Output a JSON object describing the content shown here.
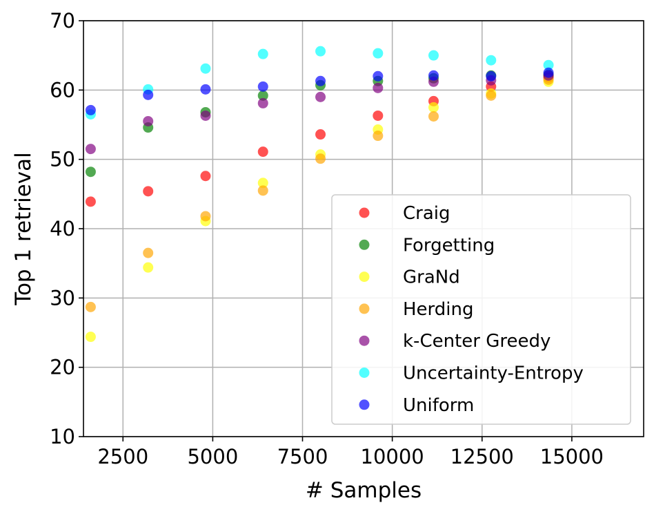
{
  "chart_data": {
    "type": "scatter",
    "xlabel": "# Samples",
    "ylabel": "Top 1 retrieval",
    "xlim": [
      1400,
      17000
    ],
    "ylim": [
      10,
      70
    ],
    "xticks": [
      2500,
      5000,
      7500,
      10000,
      12500,
      15000
    ],
    "yticks": [
      10,
      20,
      30,
      40,
      50,
      60,
      70
    ],
    "grid": true,
    "legend_position": "lower-right",
    "x": [
      1600,
      3200,
      4800,
      6400,
      8000,
      9600,
      11150,
      12750,
      14350
    ],
    "series": [
      {
        "name": "Craig",
        "color": "#ff0000",
        "values": [
          43.9,
          45.4,
          47.6,
          51.1,
          53.6,
          56.3,
          58.4,
          60.5,
          61.8
        ]
      },
      {
        "name": "Forgetting",
        "color": "#008000",
        "values": [
          48.2,
          54.6,
          56.8,
          59.2,
          60.7,
          61.3,
          61.7,
          62.1,
          62.2
        ]
      },
      {
        "name": "GraNd",
        "color": "#ffff00",
        "values": [
          24.4,
          34.4,
          41.1,
          46.6,
          50.7,
          54.3,
          57.5,
          59.5,
          61.2
        ]
      },
      {
        "name": "Herding",
        "color": "#ffa500",
        "values": [
          28.7,
          36.5,
          41.8,
          45.5,
          50.1,
          53.4,
          56.2,
          59.2,
          61.5
        ]
      },
      {
        "name": "k-Center Greedy",
        "color": "#800080",
        "values": [
          51.5,
          55.5,
          56.3,
          58.1,
          59.0,
          60.3,
          61.2,
          61.4,
          62.1
        ]
      },
      {
        "name": "Uncertainty-Entropy",
        "color": "#00ffff",
        "values": [
          56.5,
          60.1,
          63.1,
          65.2,
          65.6,
          65.3,
          65.0,
          64.3,
          63.6
        ]
      },
      {
        "name": "Uniform",
        "color": "#0000ff",
        "values": [
          57.1,
          59.3,
          60.1,
          60.5,
          61.3,
          62.0,
          62.1,
          62.0,
          62.5
        ]
      }
    ]
  }
}
